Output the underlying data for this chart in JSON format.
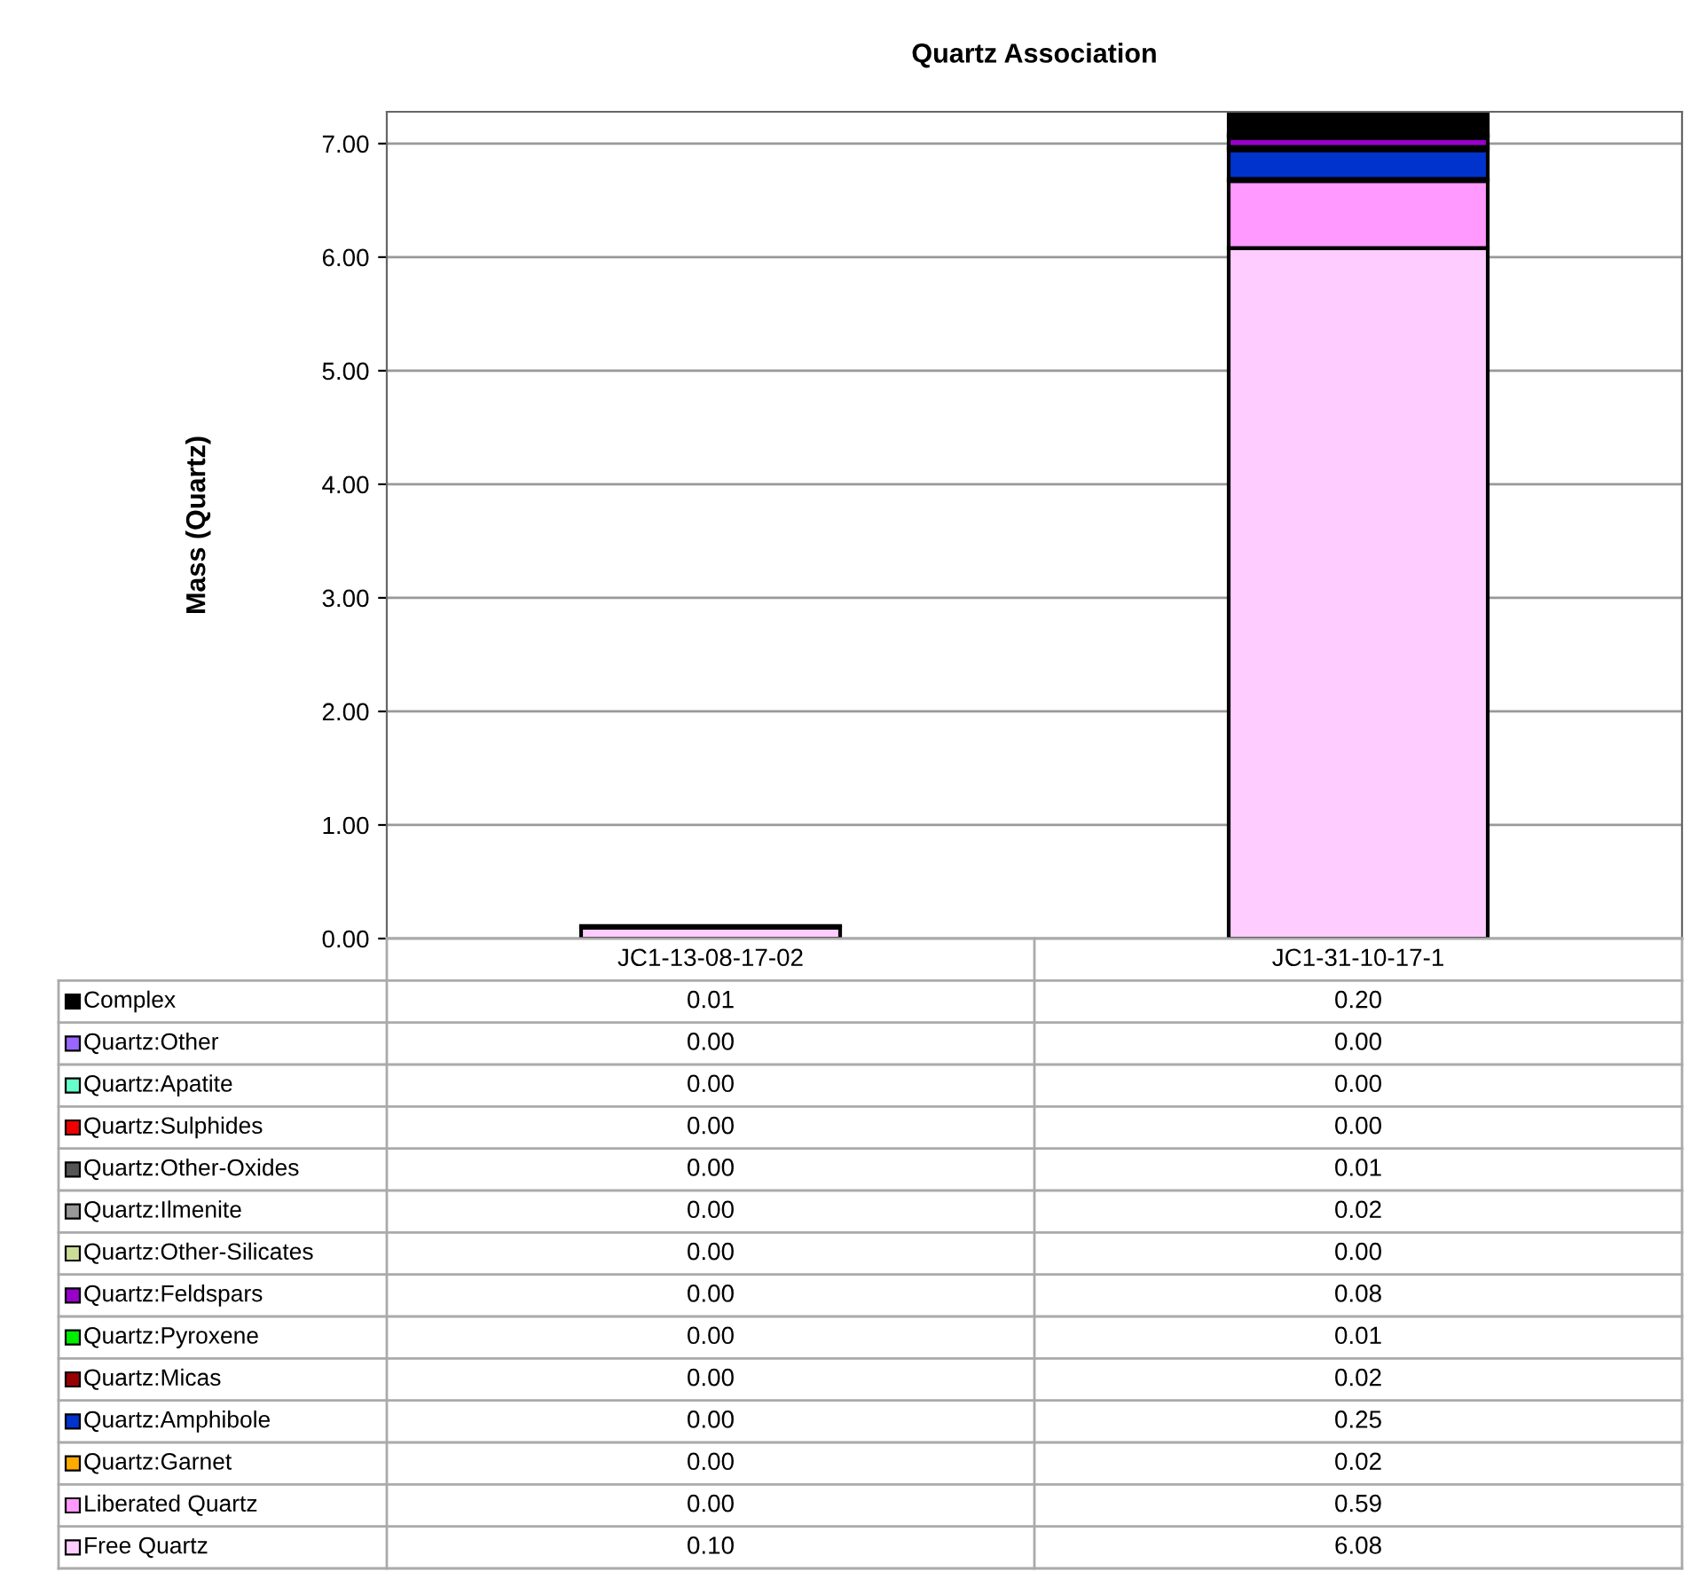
{
  "chart_data": {
    "type": "bar",
    "title": "Quartz Association",
    "ylabel": "Mass (Quartz)",
    "categories": [
      "JC1-13-08-17-02",
      "JC1-31-10-17-1"
    ],
    "stacked": true,
    "grid": "y",
    "legend": "bottom left",
    "ylim": [
      0,
      7.28
    ],
    "yticks": [
      {
        "value": 0,
        "label": "0.00"
      },
      {
        "value": 1,
        "label": "1.00"
      },
      {
        "value": 2,
        "label": "2.00"
      },
      {
        "value": 3,
        "label": "3.00"
      },
      {
        "value": 4,
        "label": "4.00"
      },
      {
        "value": 5,
        "label": "5.00"
      },
      {
        "value": 6,
        "label": "6.00"
      },
      {
        "value": 7,
        "label": "7.00"
      }
    ],
    "series": [
      {
        "name": "Free Quartz",
        "color": "#ffccff",
        "values": [
          0.1,
          6.08
        ],
        "value_labels": [
          "0.10",
          "6.08"
        ]
      },
      {
        "name": "Liberated Quartz",
        "color": "#ff99ff",
        "values": [
          0,
          0.59
        ],
        "value_labels": [
          "0.00",
          "0.59"
        ]
      },
      {
        "name": "Quartz:Garnet",
        "color": "#ffaa00",
        "values": [
          0,
          0.02
        ],
        "value_labels": [
          "0.00",
          "0.02"
        ]
      },
      {
        "name": "Quartz:Amphibole",
        "color": "#0033cc",
        "values": [
          0,
          0.25
        ],
        "value_labels": [
          "0.00",
          "0.25"
        ]
      },
      {
        "name": "Quartz:Micas",
        "color": "#990000",
        "values": [
          0,
          0.02
        ],
        "value_labels": [
          "0.00",
          "0.02"
        ]
      },
      {
        "name": "Quartz:Pyroxene",
        "color": "#00ee00",
        "values": [
          0,
          0.01
        ],
        "value_labels": [
          "0.00",
          "0.01"
        ]
      },
      {
        "name": "Quartz:Feldspars",
        "color": "#9900cc",
        "values": [
          0,
          0.08
        ],
        "value_labels": [
          "0.00",
          "0.08"
        ]
      },
      {
        "name": "Quartz:Other-Silicates",
        "color": "#ccdd99",
        "values": [
          0,
          0
        ],
        "value_labels": [
          "0.00",
          "0.00"
        ]
      },
      {
        "name": "Quartz:Ilmenite",
        "color": "#999999",
        "values": [
          0,
          0.02
        ],
        "value_labels": [
          "0.00",
          "0.02"
        ]
      },
      {
        "name": "Quartz:Other-Oxides",
        "color": "#555555",
        "values": [
          0,
          0.01
        ],
        "value_labels": [
          "0.00",
          "0.01"
        ]
      },
      {
        "name": "Quartz:Sulphides",
        "color": "#ee0000",
        "values": [
          0,
          0
        ],
        "value_labels": [
          "0.00",
          "0.00"
        ]
      },
      {
        "name": "Quartz:Apatite",
        "color": "#66ffcc",
        "values": [
          0,
          0
        ],
        "value_labels": [
          "0.00",
          "0.00"
        ]
      },
      {
        "name": "Quartz:Other",
        "color": "#9966ff",
        "values": [
          0,
          0
        ],
        "value_labels": [
          "0.00",
          "0.00"
        ]
      },
      {
        "name": "Complex",
        "color": "#000000",
        "values": [
          0.01,
          0.2
        ],
        "value_labels": [
          "0.01",
          "0.20"
        ]
      }
    ]
  }
}
